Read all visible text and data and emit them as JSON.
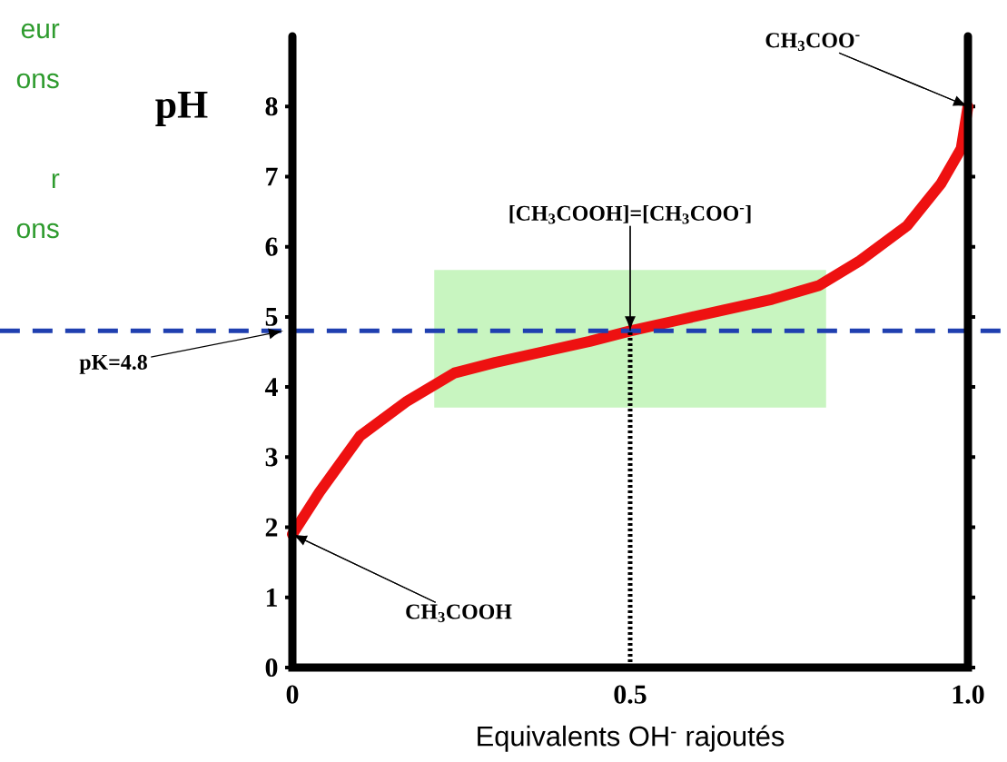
{
  "chart_data": {
    "type": "line",
    "xlabel": "Equivalents OH$^{-}$ rajoutés",
    "ylabel": "pH",
    "x": [
      0,
      0.04,
      0.1,
      0.17,
      0.24,
      0.3,
      0.37,
      0.44,
      0.5,
      0.57,
      0.64,
      0.71,
      0.78,
      0.84,
      0.91,
      0.96,
      0.99,
      1.0
    ],
    "series": [
      {
        "color": "#ee1111",
        "values": [
          1.9,
          2.5,
          3.3,
          3.8,
          4.2,
          4.35,
          4.5,
          4.65,
          4.8,
          4.95,
          5.1,
          5.25,
          5.45,
          5.8,
          6.3,
          6.9,
          7.4,
          8.0
        ]
      }
    ],
    "xlim": [
      0,
      1
    ],
    "ylim": [
      0,
      9
    ],
    "xticks": [
      0,
      0.5,
      {
        "value": 1,
        "label": "1.0"
      }
    ],
    "yticks": [
      0,
      1,
      2,
      3,
      4,
      5,
      6,
      7,
      8
    ],
    "ref_lines": [
      {
        "axis": "y",
        "value": 4.8,
        "label": "pK=4.8",
        "color": "#1f3fb0",
        "line_style": "dashed"
      },
      {
        "axis": "x",
        "value": 0.5,
        "color": "#000000",
        "line_style": "dotted"
      }
    ],
    "bands": [
      {
        "axis": "x",
        "from": 0.21,
        "to": 0.79,
        "color": "#c8f5c0"
      }
    ],
    "annotations": [
      {
        "text": "CH$_{3}$COO$^{-}$",
        "x": 1.0,
        "y": 8.0
      },
      {
        "text": "[CH$_{3}$COOH]=[CH$_{3}$COO$^{-}$]",
        "x": 0.5,
        "y": 4.8
      },
      {
        "text": "CH$_{3}$COOH",
        "x": 0,
        "y": 1.9
      },
      "eur",
      "ons",
      "r",
      "ons"
    ]
  }
}
